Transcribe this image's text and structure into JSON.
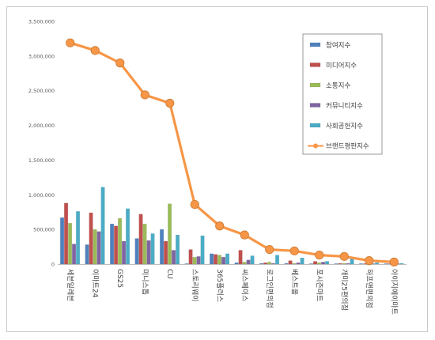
{
  "chart_data": {
    "type": "bar",
    "title": "",
    "xlabel": "",
    "ylabel": "",
    "ylim": [
      0,
      3500000
    ],
    "yticks": [
      "0",
      "500,000",
      "1,000,000",
      "1,500,000",
      "2,000,000",
      "2,500,000",
      "3,000,000",
      "3,500,000"
    ],
    "grid": false,
    "legend_position": "top-right",
    "categories": [
      "세븐일레븐",
      "이마트24",
      "GS25",
      "미니스톱",
      "CU",
      "스토리웨이",
      "365플러스",
      "씨스페이스",
      "로그인편의점",
      "베스트올",
      "포시즌마트",
      "개미25편의점",
      "하프앤편의점",
      "아이지에이마트"
    ],
    "series": [
      {
        "name": "참여지수",
        "type": "bar",
        "color": "#4f81bd",
        "values": [
          670000,
          280000,
          580000,
          370000,
          500000,
          0,
          150000,
          20000,
          10000,
          10000,
          5000,
          5000,
          5000,
          5000
        ]
      },
      {
        "name": "미디어지수",
        "type": "bar",
        "color": "#c0504d",
        "values": [
          880000,
          740000,
          550000,
          720000,
          330000,
          210000,
          140000,
          200000,
          20000,
          50000,
          40000,
          10000,
          5000,
          5000
        ]
      },
      {
        "name": "소통지수",
        "type": "bar",
        "color": "#9bbb59",
        "values": [
          590000,
          500000,
          660000,
          580000,
          870000,
          100000,
          130000,
          30000,
          30000,
          10000,
          20000,
          10000,
          5000,
          5000
        ]
      },
      {
        "name": "커뮤니티지수",
        "type": "bar",
        "color": "#8064a2",
        "values": [
          290000,
          470000,
          330000,
          340000,
          200000,
          110000,
          100000,
          60000,
          10000,
          20000,
          30000,
          10000,
          5000,
          5000
        ]
      },
      {
        "name": "사회공헌지수",
        "type": "bar",
        "color": "#4bacc6",
        "values": [
          760000,
          1110000,
          800000,
          440000,
          420000,
          410000,
          150000,
          120000,
          130000,
          90000,
          40000,
          80000,
          20000,
          10000
        ]
      },
      {
        "name": "브랜드평판지수",
        "type": "line",
        "color": "#f79646",
        "values": [
          3190000,
          3080000,
          2900000,
          2440000,
          2320000,
          860000,
          550000,
          420000,
          210000,
          190000,
          130000,
          110000,
          50000,
          30000
        ]
      }
    ]
  }
}
